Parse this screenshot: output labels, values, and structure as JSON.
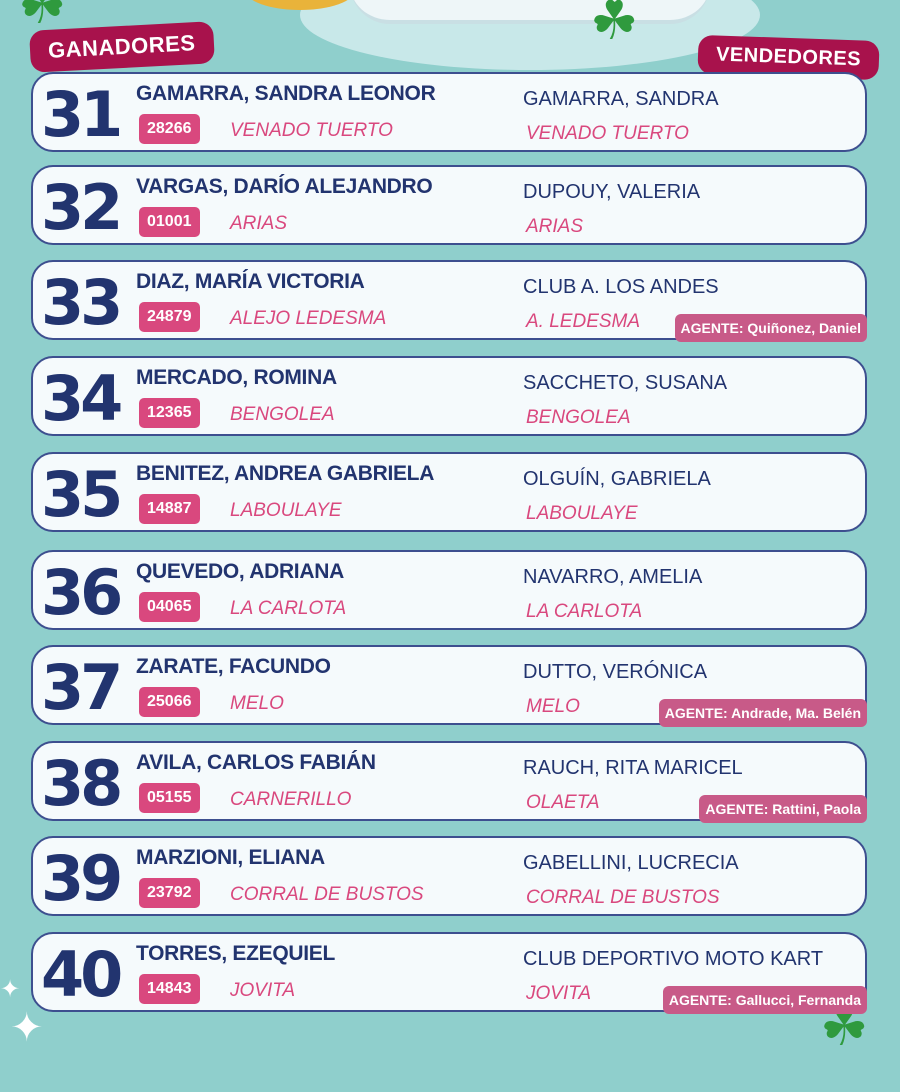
{
  "headers": {
    "winners": "GANADORES",
    "sellers": "VENDEDORES"
  },
  "colors": {
    "background": "#8fcfcc",
    "navy": "#22346f",
    "pink": "#d9487e",
    "header": "#a8124c"
  },
  "entries": [
    {
      "number": "31",
      "winner": "GAMARRA, SANDRA LEONOR",
      "code": "28266",
      "winner_city": "VENADO TUERTO",
      "seller": "GAMARRA, SANDRA",
      "seller_city": "VENADO TUERTO",
      "agent": ""
    },
    {
      "number": "32",
      "winner": "VARGAS, DARÍO ALEJANDRO",
      "code": "01001",
      "winner_city": "ARIAS",
      "seller": "DUPOUY, VALERIA",
      "seller_city": "ARIAS",
      "agent": ""
    },
    {
      "number": "33",
      "winner": "DIAZ, MARÍA VICTORIA",
      "code": "24879",
      "winner_city": "ALEJO LEDESMA",
      "seller": "CLUB A. LOS ANDES",
      "seller_city": "A. LEDESMA",
      "agent": "AGENTE: Quiñonez, Daniel"
    },
    {
      "number": "34",
      "winner": "MERCADO, ROMINA",
      "code": "12365",
      "winner_city": "BENGOLEA",
      "seller": "SACCHETO, SUSANA",
      "seller_city": "BENGOLEA",
      "agent": ""
    },
    {
      "number": "35",
      "winner": "BENITEZ, ANDREA GABRIELA",
      "code": "14887",
      "winner_city": "LABOULAYE",
      "seller": "OLGUÍN, GABRIELA",
      "seller_city": "LABOULAYE",
      "agent": ""
    },
    {
      "number": "36",
      "winner": "QUEVEDO, ADRIANA",
      "code": "04065",
      "winner_city": "LA CARLOTA",
      "seller": "NAVARRO, AMELIA",
      "seller_city": "LA CARLOTA",
      "agent": ""
    },
    {
      "number": "37",
      "winner": "ZARATE, FACUNDO",
      "code": "25066",
      "winner_city": "MELO",
      "seller": "DUTTO, VERÓNICA",
      "seller_city": "MELO",
      "agent": "AGENTE: Andrade, Ma. Belén"
    },
    {
      "number": "38",
      "winner": "AVILA, CARLOS FABIÁN",
      "code": "05155",
      "winner_city": "CARNERILLO",
      "seller": "RAUCH, RITA MARICEL",
      "seller_city": "OLAETA",
      "agent": "AGENTE: Rattini, Paola"
    },
    {
      "number": "39",
      "winner": "MARZIONI, ELIANA",
      "code": "23792",
      "winner_city": "CORRAL DE BUSTOS",
      "seller": "GABELLINI, LUCRECIA",
      "seller_city": "CORRAL DE BUSTOS",
      "agent": ""
    },
    {
      "number": "40",
      "winner": "TORRES, EZEQUIEL",
      "code": "14843",
      "winner_city": "JOVITA",
      "seller": "CLUB DEPORTIVO MOTO KART",
      "seller_city": "JOVITA",
      "agent": "AGENTE: Gallucci, Fernanda"
    }
  ]
}
